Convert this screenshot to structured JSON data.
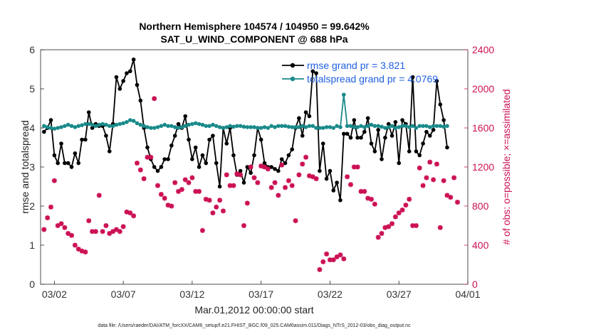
{
  "chart_data": {
    "type": "line",
    "title": "Northern Hemisphere 104574 / 104950 = 99.642%",
    "subtitle": "SAT_U_WIND_COMPONENT @ 688 hPa",
    "xlabel": "Mar.01,2012 00:00:00 start",
    "ylabel": "rmse and totalspread",
    "ylabel_right": "# of obs: o=possible; ×=assimilated",
    "footer": "data file: /Users/raeder/DAI/ATM_forcXX/CAM6_setup/f.e21.FHIST_BGC.f09_025.CAM6assim.011/Diags_NTrS_2012-03/obs_diag_output.nc",
    "x_tick_labels": [
      "03/02",
      "03/07",
      "03/12",
      "03/17",
      "03/22",
      "03/27",
      "04/01"
    ],
    "x_tick_days": [
      1,
      6,
      11,
      16,
      21,
      26,
      31
    ],
    "xlim_days": [
      0,
      31
    ],
    "ylim": [
      0,
      6
    ],
    "y_ticks": [
      0,
      1,
      2,
      3,
      4,
      5,
      6
    ],
    "ylim_right": [
      0,
      2400
    ],
    "y_ticks_right": [
      0,
      400,
      800,
      1200,
      1600,
      2000,
      2400
    ],
    "legend_position": "top-right",
    "series": [
      {
        "name": "rmse grand pr = 3.821",
        "color": "#000000",
        "axis": "left",
        "marker": "dot",
        "values": [
          3.9,
          4.0,
          4.2,
          3.3,
          3.1,
          3.6,
          3.1,
          3.1,
          3.0,
          3.35,
          3.1,
          3.7,
          3.7,
          4.4,
          4.0,
          4.1,
          4.05,
          4.05,
          3.8,
          3.4,
          4.1,
          5.3,
          5.0,
          5.2,
          5.4,
          5.45,
          5.75,
          5.1,
          4.7,
          4.0,
          3.5,
          3.2,
          3.0,
          2.9,
          3.0,
          3.2,
          3.2,
          3.55,
          3.8,
          4.1,
          4.0,
          4.3,
          3.7,
          3.2,
          3.5,
          3.0,
          3.3,
          3.1,
          3.7,
          3.8,
          3.1,
          2.5,
          4.0,
          3.6,
          4.0,
          3.3,
          2.8,
          2.9,
          2.6,
          3.0,
          2.85,
          3.3,
          4.0,
          3.7,
          3.1,
          3.0,
          3.0,
          2.95,
          2.9,
          3.2,
          3.1,
          3.3,
          3.45,
          4.0,
          4.25,
          3.8,
          4.4,
          4.3,
          5.45,
          5.4,
          2.9,
          3.6,
          2.7,
          2.9,
          2.4,
          2.6,
          2.15,
          3.85,
          3.85,
          3.75,
          4.2,
          3.75,
          3.75,
          3.9,
          4.25,
          3.6,
          3.4,
          3.95,
          3.2,
          3.75,
          4.1,
          3.8,
          4.15,
          3.1,
          4.2,
          4.1,
          3.4,
          5.3,
          3.4,
          3.3,
          3.6,
          3.9,
          3.8,
          3.95,
          5.2,
          4.6,
          4.2,
          3.5
        ],
        "x_day_step": 0.25
      },
      {
        "name": "totalspread grand pr = 4.0769",
        "color": "#1a8a8a",
        "axis": "left",
        "marker": "dot",
        "values": [
          4.05,
          4.02,
          4.0,
          3.98,
          4.0,
          4.02,
          4.05,
          4.08,
          4.05,
          4.02,
          4.05,
          4.07,
          4.1,
          4.1,
          4.08,
          4.05,
          4.08,
          4.1,
          4.08,
          4.05,
          4.05,
          4.08,
          4.1,
          4.12,
          4.15,
          4.2,
          4.18,
          4.12,
          4.08,
          4.05,
          4.02,
          4.0,
          4.0,
          4.02,
          4.05,
          4.08,
          4.05,
          4.05,
          4.02,
          4.0,
          4.02,
          4.05,
          4.08,
          4.1,
          4.12,
          4.1,
          4.08,
          4.05,
          4.05,
          4.08,
          4.05,
          4.02,
          4.0,
          4.02,
          4.05,
          4.03,
          4.05,
          4.05,
          4.03,
          4.02,
          4.02,
          4.02,
          4.0,
          4.0,
          4.02,
          4.0,
          4.05,
          4.02,
          4.05,
          4.05,
          4.05,
          4.03,
          4.02,
          4.02,
          4.02,
          4.05,
          4.02,
          4.05,
          4.05,
          4.0,
          4.0,
          4.0,
          4.02,
          4.02,
          4.0,
          4.05,
          4.02,
          4.85,
          4.05,
          4.05,
          4.02,
          4.02,
          4.05,
          4.02,
          4.05,
          4.08,
          4.05,
          4.05,
          4.03,
          4.0,
          4.02,
          4.05,
          4.0,
          4.02,
          4.05,
          4.05,
          4.02,
          4.05,
          4.0,
          4.05,
          4.05,
          4.05,
          4.02,
          4.05,
          4.05,
          4.05,
          4.03,
          4.05
        ],
        "x_day_step": 0.25
      },
      {
        "name": "obs assimilated",
        "color": "#cc1155",
        "axis": "right",
        "marker": "asterisk",
        "values": [
          560,
          680,
          790,
          1060,
          600,
          620,
          580,
          520,
          500,
          400,
          360,
          340,
          330,
          650,
          540,
          540,
          910,
          540,
          600,
          520,
          540,
          560,
          540,
          590,
          740,
          730,
          700,
          1240,
          1170,
          1080,
          1300,
          1300,
          1900,
          1010,
          920,
          880,
          810,
          800,
          1040,
          950,
          970,
          1070,
          1040,
          1090,
          950,
          950,
          550,
          870,
          860,
          730,
          790,
          860,
          750,
          1120,
          1010,
          1010,
          1130,
          1120,
          600,
          830,
          1200,
          1090,
          1040,
          1210,
          1200,
          1180,
          990,
          1040,
          910,
          1220,
          990,
          1060,
          1010,
          650,
          1120,
          1230,
          1300,
          1110,
          1100,
          1080,
          150,
          230,
          310,
          250,
          250,
          280,
          300,
          260,
          1100,
          1020,
          1200,
          1200,
          950,
          950,
          880,
          870,
          820,
          480,
          520,
          580,
          590,
          620,
          690,
          730,
          760,
          810,
          870,
          600,
          600,
          1190,
          1010,
          1090,
          1250,
          1070,
          1230,
          580,
          1060,
          910,
          890,
          1090,
          840
        ],
        "x_day_step": 0.25
      },
      {
        "name": "obs possible",
        "color": "#cc1155",
        "axis": "right",
        "marker": "circle",
        "values": [
          560,
          680,
          790,
          1060,
          600,
          620,
          580,
          520,
          500,
          400,
          360,
          340,
          330,
          650,
          540,
          540,
          910,
          540,
          600,
          520,
          540,
          560,
          540,
          590,
          740,
          730,
          700,
          1240,
          1170,
          1080,
          1300,
          1300,
          1900,
          1010,
          920,
          880,
          810,
          800,
          1040,
          950,
          970,
          1070,
          1040,
          1090,
          950,
          950,
          550,
          870,
          860,
          730,
          790,
          860,
          750,
          1120,
          1010,
          1010,
          1130,
          1120,
          600,
          830,
          1200,
          1090,
          1040,
          1210,
          1200,
          1180,
          990,
          1040,
          910,
          1220,
          990,
          1060,
          1010,
          650,
          1120,
          1230,
          1300,
          1110,
          1100,
          1080,
          150,
          230,
          310,
          250,
          250,
          280,
          300,
          260,
          1100,
          1020,
          1200,
          1200,
          950,
          950,
          880,
          870,
          820,
          480,
          520,
          580,
          590,
          620,
          690,
          730,
          760,
          810,
          870,
          600,
          600,
          1190,
          1010,
          1090,
          1250,
          1070,
          1230,
          580,
          1060,
          910,
          890,
          1090,
          840
        ],
        "x_day_step": 0.25
      }
    ]
  }
}
